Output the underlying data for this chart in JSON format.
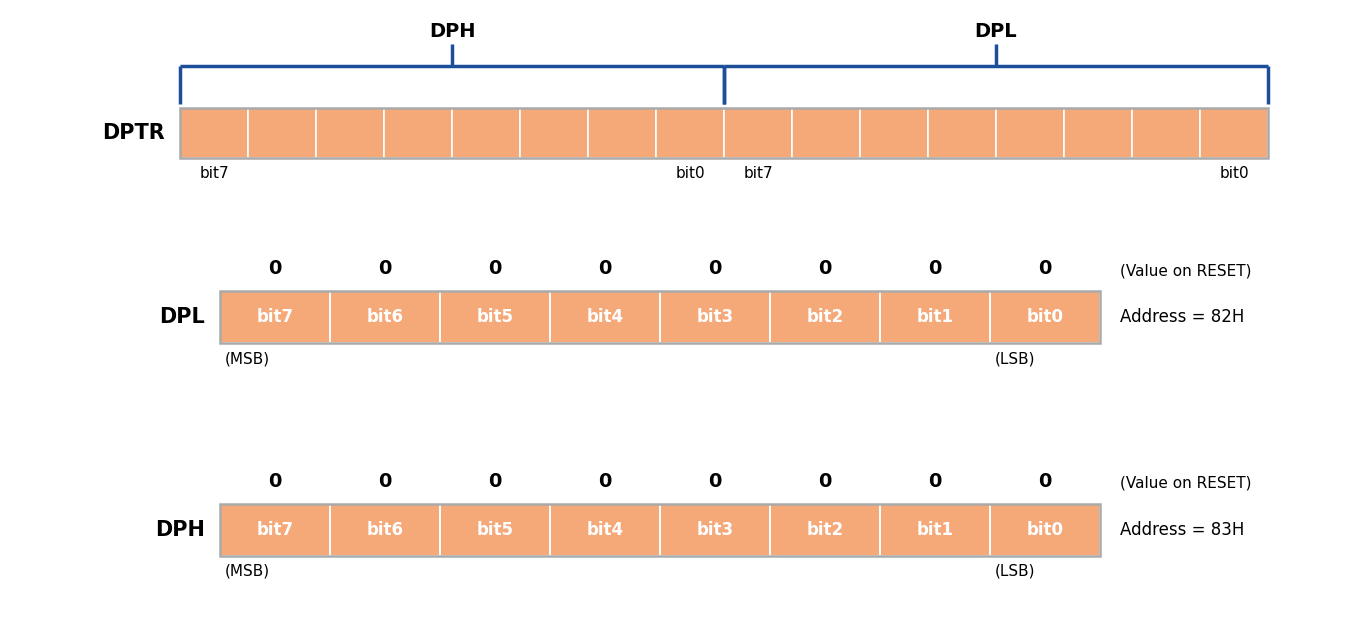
{
  "bg_color": "#ffffff",
  "orange_color": "#F5A878",
  "white": "#ffffff",
  "black": "#000000",
  "blue": "#1B4F9A",
  "gray_border": "#aaaaaa",
  "dptr_bits": 16,
  "reg_bits": 8,
  "bit_labels": [
    "bit7",
    "bit6",
    "bit5",
    "bit4",
    "bit3",
    "bit2",
    "bit1",
    "bit0"
  ],
  "dpl_address": "Address = 82H",
  "dph_address": "Address = 83H",
  "reset_values": [
    "0",
    "0",
    "0",
    "0",
    "0",
    "0",
    "0",
    "0"
  ],
  "dptr_label": "DPTR",
  "dpl_label": "DPL",
  "dph_label": "DPH",
  "reset_label": "(Value on RESET)",
  "msb_label": "(MSB)",
  "lsb_label": "(LSB)",
  "dph_bracket_label": "DPH",
  "dpl_bracket_label": "DPL",
  "fig_width": 13.47,
  "fig_height": 6.28,
  "dpi": 100
}
